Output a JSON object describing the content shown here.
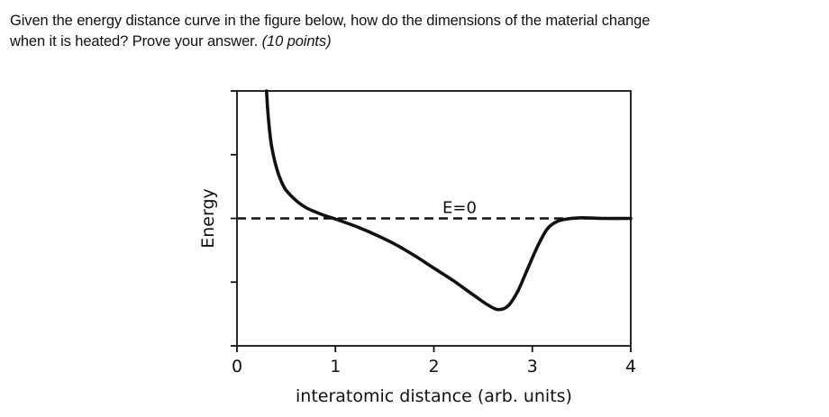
{
  "question": {
    "line1": "Given the energy distance curve in the figure below, how do the dimensions of the material change",
    "line2": "when it is heated? Prove your answer.",
    "points": "(10 points)"
  },
  "chart_data": {
    "type": "line",
    "title": "",
    "xlabel": "interatomic distance (arb. units)",
    "ylabel": "Energy",
    "xlim": [
      0,
      4
    ],
    "ylim": [
      -2,
      2
    ],
    "xticks": [
      0,
      1,
      2,
      3,
      4
    ],
    "xtick_labels": [
      "0",
      "1",
      "2",
      "3",
      "4"
    ],
    "yticks": [
      -2,
      -1,
      0,
      1,
      2
    ],
    "ytick_labels": [
      "",
      "",
      "",
      "",
      ""
    ],
    "grid": false,
    "legend": null,
    "reference_line": {
      "y": 0,
      "style": "dashed",
      "label": "E=0"
    },
    "series": [
      {
        "x": [
          0.3,
          0.32,
          0.35,
          0.4,
          0.45,
          0.5,
          0.6,
          0.7,
          0.8,
          0.9,
          1.0,
          1.2,
          1.4,
          1.6,
          1.8,
          2.0,
          2.2,
          2.4,
          2.55,
          2.65,
          2.75,
          2.85,
          2.95,
          3.05,
          3.15,
          3.25,
          3.35,
          3.5,
          3.7,
          4.0
        ],
        "y": [
          2.0,
          1.55,
          1.15,
          0.8,
          0.58,
          0.44,
          0.28,
          0.17,
          0.1,
          0.04,
          -0.01,
          -0.12,
          -0.25,
          -0.4,
          -0.58,
          -0.78,
          -0.98,
          -1.2,
          -1.36,
          -1.43,
          -1.38,
          -1.15,
          -0.8,
          -0.45,
          -0.17,
          -0.05,
          -0.01,
          0.01,
          0.0,
          0.0
        ]
      }
    ]
  }
}
